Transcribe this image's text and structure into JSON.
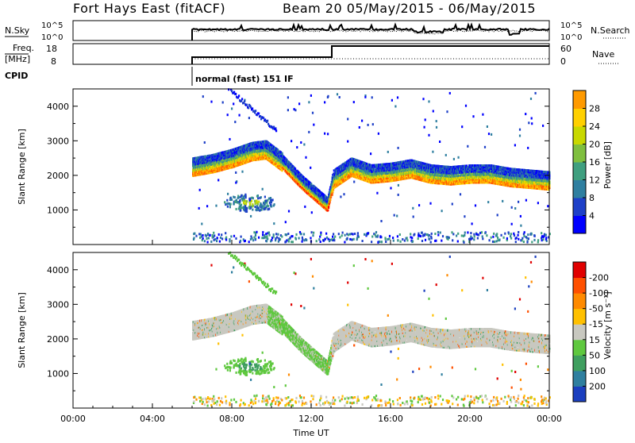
{
  "header": {
    "station": "Fort Hays East (fitACF)",
    "beam_date": "Beam 20 05/May/2015 - 06/May/2015"
  },
  "top_panels": {
    "nsky": {
      "label": "N.Sky",
      "ticks": [
        "10^5",
        "10^0"
      ]
    },
    "nsearch": {
      "label": "N.Search",
      "ticks": [
        "10^5",
        "10^0"
      ]
    },
    "freq": {
      "label_line1": "Freq.",
      "label_line2": "[MHz]",
      "ticks": [
        "18",
        "8"
      ]
    },
    "nave": {
      "label": "Nave",
      "ticks": [
        "60",
        "0"
      ]
    },
    "cpid": {
      "label": "CPID",
      "mode_text": "normal (fast) 151 IF"
    }
  },
  "chart_data": [
    {
      "type": "heatmap",
      "title": "",
      "xlabel": "",
      "ylabel": "Slant Range [km]",
      "x_ticks": [
        "00:00",
        "04:00",
        "08:00",
        "12:00",
        "16:00",
        "20:00",
        "00:00"
      ],
      "y_ticks": [
        1000,
        2000,
        3000,
        4000
      ],
      "ylim": [
        0,
        4500
      ],
      "xlim_hours": [
        0,
        24
      ],
      "colorbar": {
        "label": "Power [dB]",
        "ticks": [
          "4",
          "8",
          "12",
          "16",
          "20",
          "24",
          "28"
        ],
        "colors": [
          "#0000ff",
          "#1e40c8",
          "#2f7fa0",
          "#3f9f7f",
          "#7fbf3f",
          "#c8d800",
          "#ffd000",
          "#ff9a00",
          "#ff5a00",
          "#ff0000"
        ]
      },
      "main_band": [
        {
          "t": 6.0,
          "r": 2250
        },
        {
          "t": 7.0,
          "r": 2350
        },
        {
          "t": 8.0,
          "r": 2500
        },
        {
          "t": 9.0,
          "r": 2700
        },
        {
          "t": 9.7,
          "r": 2750
        },
        {
          "t": 10.5,
          "r": 2400
        },
        {
          "t": 11.5,
          "r": 1800
        },
        {
          "t": 12.8,
          "r": 1150
        },
        {
          "t": 13.1,
          "r": 1900
        },
        {
          "t": 14.0,
          "r": 2250
        },
        {
          "t": 15.0,
          "r": 2050
        },
        {
          "t": 16.0,
          "r": 2100
        },
        {
          "t": 17.0,
          "r": 2200
        },
        {
          "t": 18.0,
          "r": 2050
        },
        {
          "t": 19.0,
          "r": 2000
        },
        {
          "t": 20.0,
          "r": 2050
        },
        {
          "t": 21.0,
          "r": 2050
        },
        {
          "t": 22.0,
          "r": 1950
        },
        {
          "t": 23.0,
          "r": 1900
        },
        {
          "t": 24.0,
          "r": 1850
        }
      ]
    },
    {
      "type": "heatmap",
      "title": "",
      "xlabel": "Time UT",
      "ylabel": "Slant Range [km]",
      "x_ticks": [
        "00:00",
        "04:00",
        "08:00",
        "12:00",
        "16:00",
        "20:00",
        "00:00"
      ],
      "y_ticks": [
        1000,
        2000,
        3000,
        4000
      ],
      "ylim": [
        0,
        4500
      ],
      "xlim_hours": [
        0,
        24
      ],
      "colorbar": {
        "label": "Velocity [m s⁻¹]",
        "ticks": [
          "200",
          "100",
          "50",
          "15",
          "-15",
          "-50",
          "-100",
          "-200"
        ],
        "colors": [
          "#1b3fbf",
          "#2f7f9f",
          "#3f9f5f",
          "#5fc83f",
          "#c8c8c0",
          "#ffc000",
          "#ff8a00",
          "#ff5000",
          "#e00000"
        ]
      }
    }
  ]
}
